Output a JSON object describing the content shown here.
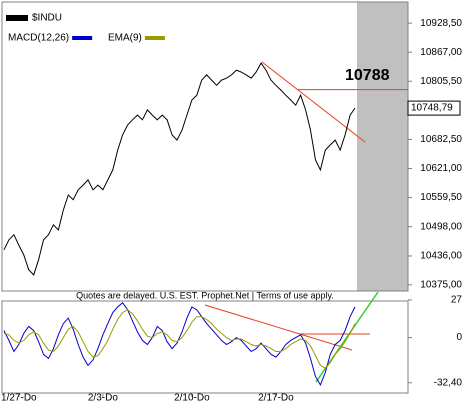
{
  "chart_data": [
    {
      "type": "line",
      "series": [
        {
          "name": "$INDU",
          "color": "#000000",
          "values": [
            10449,
            10470,
            10481,
            10459,
            10438,
            10407,
            10396,
            10428,
            10470,
            10481,
            10502,
            10491,
            10533,
            10565,
            10555,
            10576,
            10586,
            10597,
            10576,
            10586,
            10576,
            10597,
            10618,
            10660,
            10692,
            10713,
            10724,
            10734,
            10724,
            10745,
            10734,
            10724,
            10734,
            10724,
            10692,
            10681,
            10702,
            10734,
            10766,
            10776,
            10808,
            10819,
            10808,
            10797,
            10808,
            10812,
            10819,
            10829,
            10825,
            10819,
            10812,
            10825,
            10844,
            10829,
            10808,
            10797,
            10787,
            10776,
            10766,
            10755,
            10776,
            10745,
            10702,
            10639,
            10618,
            10660,
            10671,
            10681,
            10660,
            10692,
            10734,
            10748.79
          ]
        }
      ],
      "ylim": [
        10364,
        10969
      ],
      "yticks": [
        {
          "value": 10375,
          "label": "10375,00"
        },
        {
          "value": 10436,
          "label": "10436,00"
        },
        {
          "value": 10498,
          "label": "10498,00"
        },
        {
          "value": 10559.5,
          "label": "10559,50"
        },
        {
          "value": 10621,
          "label": "10621,00"
        },
        {
          "value": 10682.5,
          "label": "10682,50"
        },
        {
          "value": 10805.5,
          "label": "10805,50"
        },
        {
          "value": 10867,
          "label": "10867,00"
        },
        {
          "value": 10928.5,
          "label": "10928,50"
        }
      ],
      "last_value": {
        "value": 10748.79,
        "label": "10748,79"
      },
      "hline": 10788,
      "hline_color": "#e8401c"
    },
    {
      "type": "line",
      "note": "Quotes are delayed. U.S. EST. Prophet.Net | Terms of use apply.",
      "categories": [
        null,
        null,
        null,
        "1/27-Do",
        null,
        null,
        null,
        null,
        null,
        null,
        null,
        null,
        null,
        null,
        null,
        null,
        null,
        null,
        null,
        null,
        "2/3-Do",
        null,
        null,
        null,
        null,
        null,
        null,
        null,
        null,
        null,
        null,
        null,
        null,
        null,
        null,
        null,
        null,
        null,
        "2/10-Do",
        null,
        null,
        null,
        null,
        null,
        null,
        null,
        null,
        null,
        null,
        null,
        null,
        null,
        null,
        null,
        null,
        "2/17-Do",
        null,
        null,
        null,
        null,
        null,
        null,
        null,
        null,
        null,
        null,
        null,
        null,
        null,
        null,
        null,
        null
      ],
      "series": [
        {
          "name": "MACD(12,26)",
          "color": "#0000cc",
          "values": [
            5,
            -2,
            -10,
            -5,
            3,
            8,
            5,
            -3,
            -12,
            -15,
            -8,
            2,
            10,
            14,
            6,
            -5,
            -14,
            -20,
            -16,
            -8,
            2,
            10,
            18,
            22,
            25,
            20,
            12,
            4,
            -2,
            -5,
            0,
            8,
            5,
            -3,
            -8,
            -4,
            4,
            14,
            22,
            20,
            15,
            10,
            6,
            2,
            -2,
            -5,
            -3,
            0,
            -2,
            -6,
            -10,
            -8,
            -4,
            -8,
            -12,
            -14,
            -10,
            -5,
            -2,
            0,
            2,
            -4,
            -15,
            -28,
            -34,
            -25,
            -12,
            -5,
            -2,
            5,
            15,
            22
          ]
        },
        {
          "name": "EMA(9)",
          "color": "#999900",
          "values": [
            3,
            2,
            -2,
            -4,
            -2,
            2,
            4,
            2,
            -4,
            -9,
            -10,
            -6,
            0,
            6,
            8,
            4,
            -3,
            -10,
            -14,
            -13,
            -8,
            -2,
            6,
            13,
            18,
            20,
            17,
            12,
            6,
            1,
            0,
            3,
            4,
            2,
            -2,
            -3,
            0,
            5,
            11,
            15,
            15,
            13,
            10,
            6,
            3,
            0,
            -2,
            -1,
            -1,
            -3,
            -5,
            -6,
            -5,
            -6,
            -8,
            -10,
            -10,
            -8,
            -5,
            -3,
            -1,
            -2,
            -6,
            -13,
            -20,
            -22,
            -18,
            -12,
            -8,
            -3,
            3,
            10
          ]
        }
      ],
      "ylim": [
        -39.8,
        32
      ],
      "yticks": [
        {
          "value": -32.4,
          "label": "-32,40"
        },
        0,
        27
      ]
    }
  ]
}
